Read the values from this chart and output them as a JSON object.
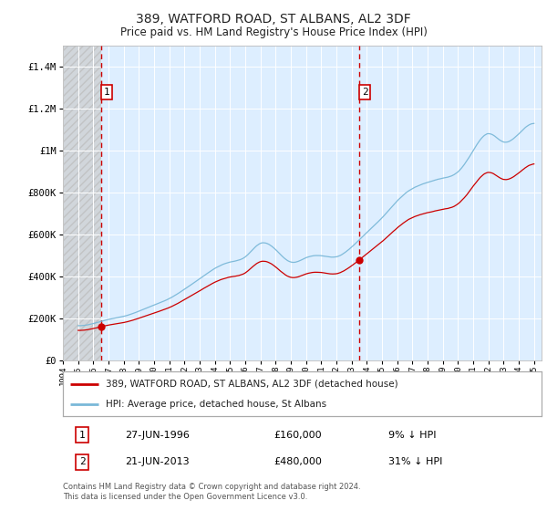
{
  "title": "389, WATFORD ROAD, ST ALBANS, AL2 3DF",
  "subtitle": "Price paid vs. HM Land Registry's House Price Index (HPI)",
  "legend_line1": "389, WATFORD ROAD, ST ALBANS, AL2 3DF (detached house)",
  "legend_line2": "HPI: Average price, detached house, St Albans",
  "annotation1_label": "1",
  "annotation1_date": "27-JUN-1996",
  "annotation1_price": "£160,000",
  "annotation1_hpi": "9% ↓ HPI",
  "annotation2_label": "2",
  "annotation2_date": "21-JUN-2013",
  "annotation2_price": "£480,000",
  "annotation2_hpi": "31% ↓ HPI",
  "footnote": "Contains HM Land Registry data © Crown copyright and database right 2024.\nThis data is licensed under the Open Government Licence v3.0.",
  "sale1_year": 1996.49,
  "sale1_price": 160000,
  "sale2_year": 2013.47,
  "sale2_price": 480000,
  "hpi_color": "#7ab8d8",
  "price_color": "#cc0000",
  "dashed_color": "#cc0000",
  "background_plot": "#ddeeff",
  "ylim_max": 1500000,
  "ylim_min": 0,
  "fig_width": 6.0,
  "fig_height": 5.6,
  "dpi": 100
}
